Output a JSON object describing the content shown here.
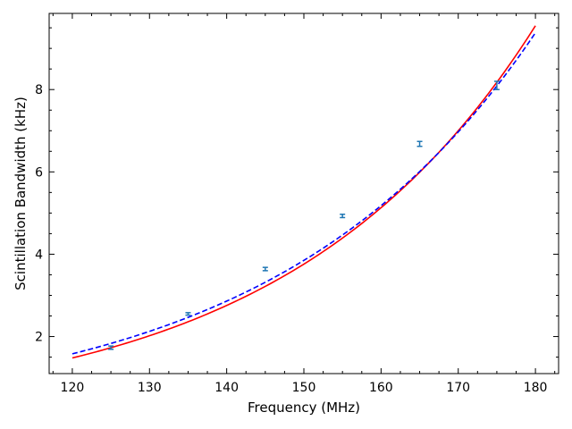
{
  "chart_data": {
    "type": "scatter",
    "title": "",
    "xlabel": "Frequency (MHz)",
    "ylabel": "Scintillation Bandwidth (kHz)",
    "xlim": [
      117,
      183
    ],
    "ylim": [
      1.1,
      9.85
    ],
    "grid": false,
    "x_ticks": [
      120,
      130,
      140,
      150,
      160,
      170,
      180
    ],
    "y_ticks": [
      2,
      4,
      6,
      8
    ],
    "measurements": {
      "color": "#1f77b4",
      "x": [
        125,
        135,
        145,
        155,
        165,
        175
      ],
      "y": [
        1.73,
        2.55,
        3.64,
        4.93,
        6.68,
        8.1
      ],
      "yerr": [
        0.04,
        0.03,
        0.04,
        0.04,
        0.06,
        0.1
      ]
    },
    "series": [
      {
        "style": "solid",
        "color": "#ff0000",
        "model": {
          "x0": 120,
          "y0": 1.48,
          "x1": 180,
          "y1": 9.55
        }
      },
      {
        "style": "dashed",
        "color": "#0000ff",
        "model": {
          "x0": 120,
          "y0": 1.58,
          "x1": 180,
          "y1": 9.38
        }
      }
    ]
  }
}
